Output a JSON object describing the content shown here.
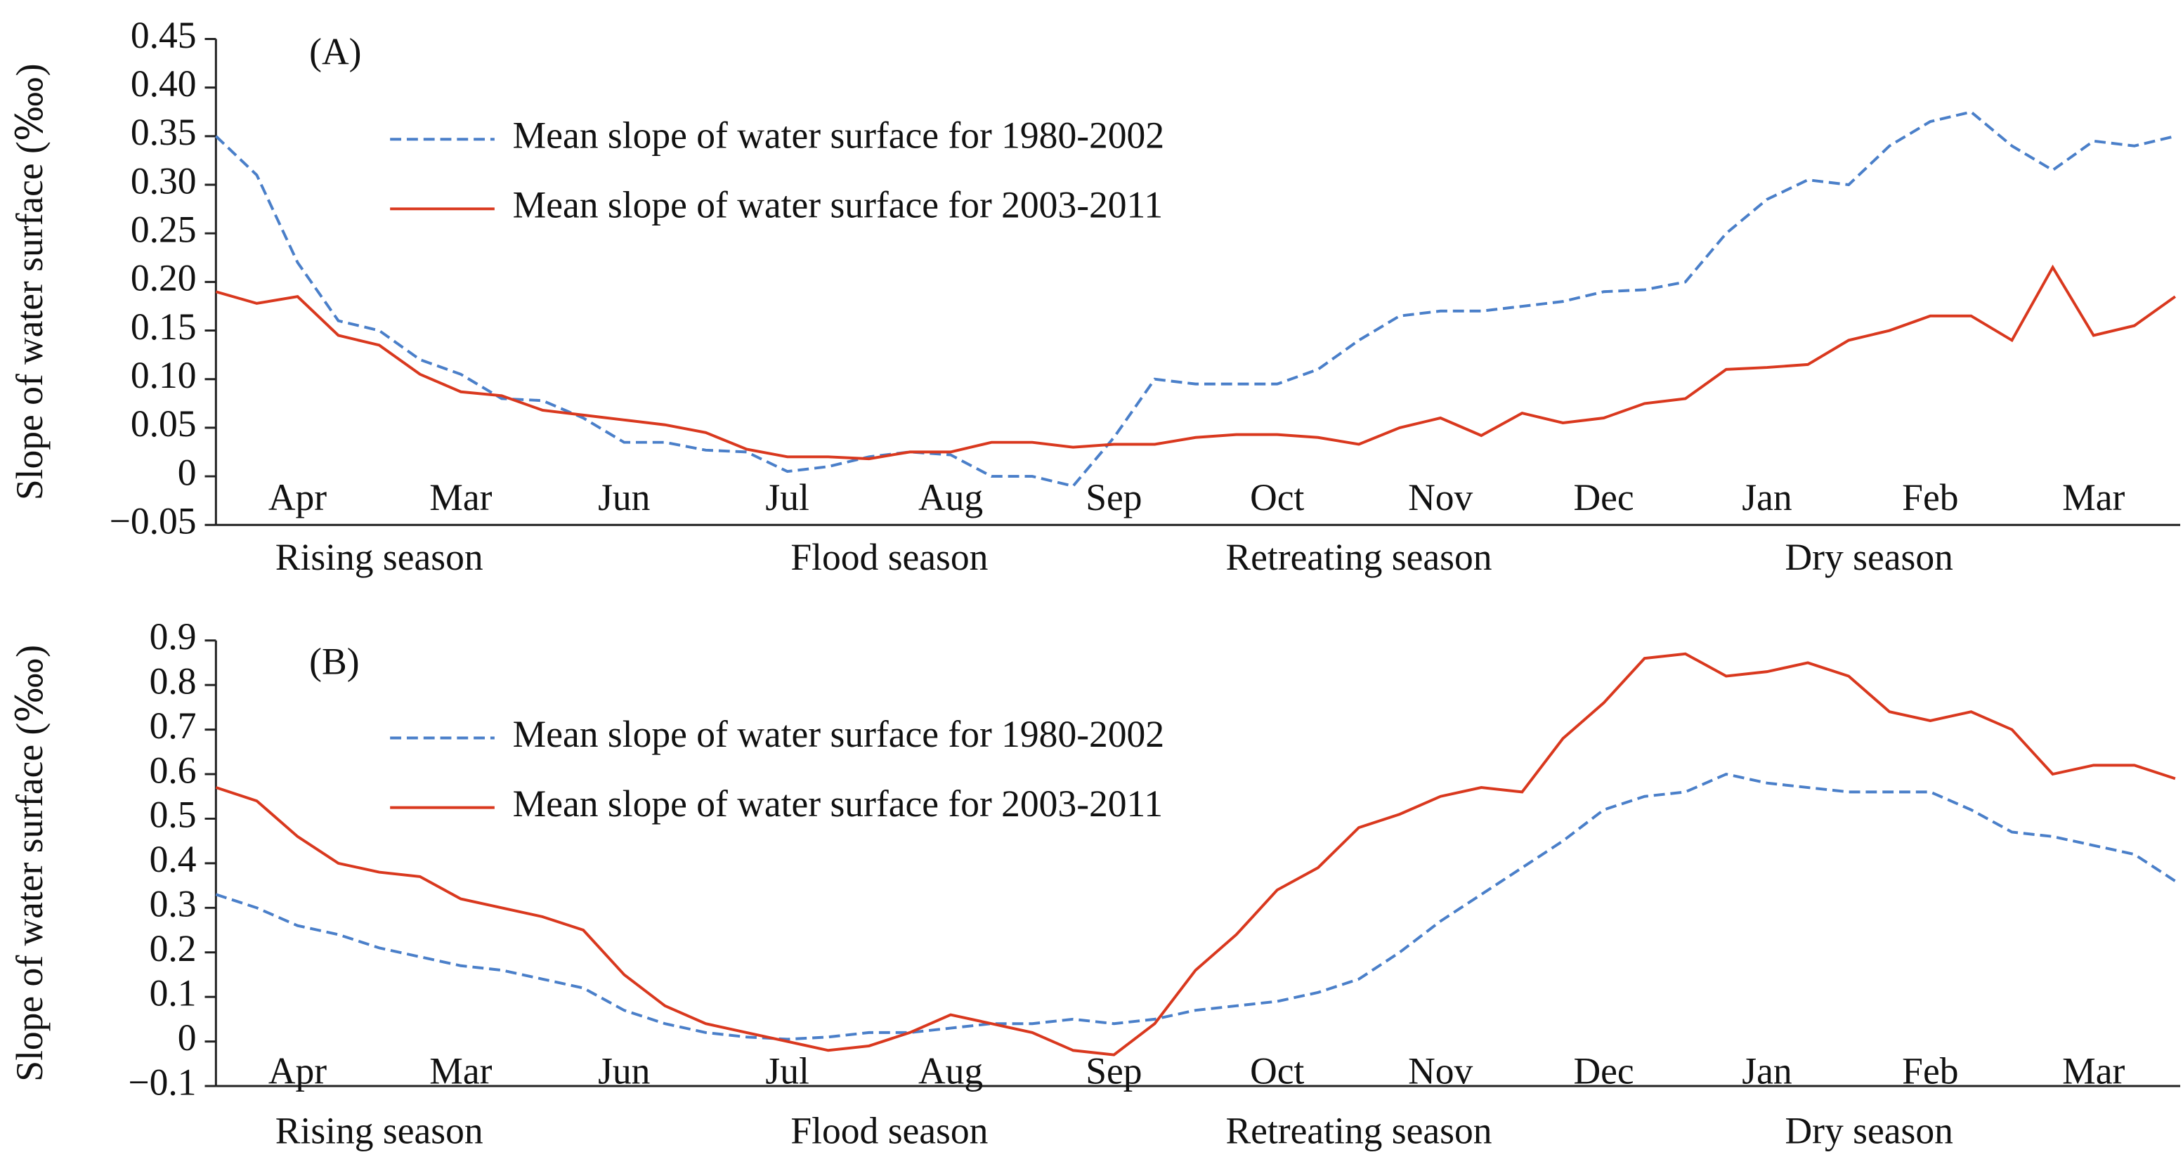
{
  "chart_data": [
    {
      "type": "line",
      "panel_label": "(A)",
      "ylabel": "Slope of water surface (‱)",
      "categories": [
        null,
        null,
        "Apr",
        null,
        null,
        null,
        "Mar",
        null,
        null,
        null,
        "Jun",
        null,
        null,
        null,
        "Jul",
        null,
        null,
        null,
        "Aug",
        null,
        null,
        null,
        "Sep",
        null,
        null,
        null,
        "Oct",
        null,
        null,
        null,
        "Nov",
        null,
        null,
        null,
        "Dec",
        null,
        null,
        null,
        "Jan",
        null,
        null,
        null,
        "Feb",
        null,
        null,
        null,
        "Mar",
        null,
        null
      ],
      "seasons": [
        "Rising season",
        "Flood season",
        "Retreating season",
        "Dry season"
      ],
      "ylim": [
        -0.05,
        0.45
      ],
      "yticks": [
        {
          "value": -0.05,
          "label": "−0.05"
        },
        0,
        0.05,
        {
          "value": 0.1,
          "label": "0.10"
        },
        0.15,
        {
          "value": 0.2,
          "label": "0.20"
        },
        0.25,
        {
          "value": 0.3,
          "label": "0.30"
        },
        0.35,
        {
          "value": 0.4,
          "label": "0.40"
        },
        0.45
      ],
      "series": [
        {
          "name": "Mean slope of water surface for 1980-2002",
          "color": "#4a7fc9",
          "dash": true,
          "values": [
            0.35,
            0.31,
            0.22,
            0.16,
            0.15,
            0.12,
            0.105,
            0.08,
            0.078,
            0.06,
            0.035,
            0.035,
            0.027,
            0.025,
            0.005,
            0.01,
            0.02,
            0.025,
            0.022,
            0.0,
            0.0,
            -0.01,
            0.04,
            0.1,
            0.095,
            0.095,
            0.095,
            0.11,
            0.14,
            0.165,
            0.17,
            0.17,
            0.175,
            0.18,
            0.19,
            0.192,
            0.2,
            0.25,
            0.285,
            0.305,
            0.3,
            0.34,
            0.365,
            0.375,
            0.34,
            0.315,
            0.345,
            0.34,
            0.35
          ]
        },
        {
          "name": "Mean slope of water surface for 2003-2011",
          "color": "#d9381e",
          "dash": false,
          "values": [
            0.19,
            0.178,
            0.185,
            0.145,
            0.135,
            0.105,
            0.087,
            0.083,
            0.068,
            0.063,
            0.058,
            0.053,
            0.045,
            0.028,
            0.02,
            0.02,
            0.018,
            0.025,
            0.025,
            0.035,
            0.035,
            0.03,
            0.033,
            0.033,
            0.04,
            0.043,
            0.043,
            0.04,
            0.033,
            0.05,
            0.06,
            0.042,
            0.065,
            0.055,
            0.06,
            0.075,
            0.08,
            0.11,
            0.112,
            0.115,
            0.14,
            0.15,
            0.165,
            0.165,
            0.14,
            0.215,
            0.145,
            0.155,
            0.185
          ]
        }
      ]
    },
    {
      "type": "line",
      "panel_label": "(B)",
      "ylabel": "Slope of water surface (‱)",
      "categories": [
        null,
        null,
        "Apr",
        null,
        null,
        null,
        "Mar",
        null,
        null,
        null,
        "Jun",
        null,
        null,
        null,
        "Jul",
        null,
        null,
        null,
        "Aug",
        null,
        null,
        null,
        "Sep",
        null,
        null,
        null,
        "Oct",
        null,
        null,
        null,
        "Nov",
        null,
        null,
        null,
        "Dec",
        null,
        null,
        null,
        "Jan",
        null,
        null,
        null,
        "Feb",
        null,
        null,
        null,
        "Mar",
        null,
        null
      ],
      "seasons": [
        "Rising season",
        "Flood season",
        "Retreating season",
        "Dry season"
      ],
      "ylim": [
        -0.1,
        0.9
      ],
      "yticks": [
        {
          "value": -0.1,
          "label": "−0.1"
        },
        0,
        0.1,
        0.2,
        0.3,
        0.4,
        0.5,
        0.6,
        0.7,
        0.8,
        0.9
      ],
      "series": [
        {
          "name": "Mean slope of water surface for 1980-2002",
          "color": "#4a7fc9",
          "dash": true,
          "values": [
            0.33,
            0.3,
            0.26,
            0.24,
            0.21,
            0.19,
            0.17,
            0.16,
            0.14,
            0.12,
            0.07,
            0.04,
            0.02,
            0.01,
            0.005,
            0.01,
            0.02,
            0.02,
            0.03,
            0.04,
            0.04,
            0.05,
            0.04,
            0.05,
            0.07,
            0.08,
            0.09,
            0.11,
            0.14,
            0.2,
            0.27,
            0.33,
            0.39,
            0.45,
            0.52,
            0.55,
            0.56,
            0.6,
            0.58,
            0.57,
            0.56,
            0.56,
            0.56,
            0.52,
            0.47,
            0.46,
            0.44,
            0.42,
            0.36
          ]
        },
        {
          "name": "Mean slope of water surface for 2003-2011",
          "color": "#d9381e",
          "dash": false,
          "values": [
            0.57,
            0.54,
            0.46,
            0.4,
            0.38,
            0.37,
            0.32,
            0.3,
            0.28,
            0.25,
            0.15,
            0.08,
            0.04,
            0.02,
            0.0,
            -0.02,
            -0.01,
            0.02,
            0.06,
            0.04,
            0.02,
            -0.02,
            -0.03,
            0.04,
            0.16,
            0.24,
            0.34,
            0.39,
            0.48,
            0.51,
            0.55,
            0.57,
            0.56,
            0.68,
            0.76,
            0.86,
            0.87,
            0.82,
            0.83,
            0.85,
            0.82,
            0.74,
            0.72,
            0.74,
            0.7,
            0.6,
            0.62,
            0.62,
            0.59
          ]
        }
      ]
    }
  ]
}
